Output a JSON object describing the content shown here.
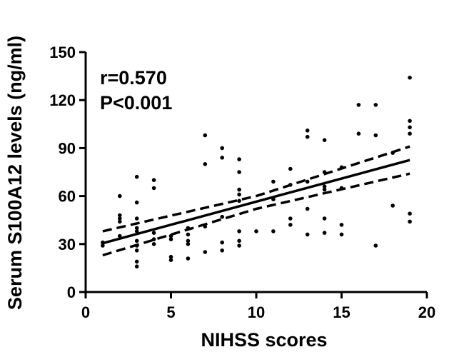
{
  "chart_data": {
    "type": "scatter",
    "title": "",
    "xlabel": "NIHSS scores",
    "ylabel": "Serum S100A12 levels (ng/ml)",
    "xlim": [
      0,
      20
    ],
    "ylim": [
      0,
      150
    ],
    "xticks": [
      0,
      5,
      10,
      15,
      20
    ],
    "yticks": [
      0,
      30,
      60,
      90,
      120,
      150
    ],
    "grid": false,
    "legend": "none",
    "annotations": [
      "r=0.570",
      "P<0.001"
    ],
    "color": "#000000",
    "points": [
      {
        "x": 1,
        "y": 29
      },
      {
        "x": 1,
        "y": 31
      },
      {
        "x": 2,
        "y": 60
      },
      {
        "x": 2,
        "y": 48
      },
      {
        "x": 2,
        "y": 46
      },
      {
        "x": 2,
        "y": 44
      },
      {
        "x": 2,
        "y": 35
      },
      {
        "x": 3,
        "y": 72
      },
      {
        "x": 3,
        "y": 56
      },
      {
        "x": 3,
        "y": 46
      },
      {
        "x": 3,
        "y": 40
      },
      {
        "x": 3,
        "y": 38
      },
      {
        "x": 3,
        "y": 32
      },
      {
        "x": 3,
        "y": 29
      },
      {
        "x": 3,
        "y": 26
      },
      {
        "x": 3,
        "y": 19
      },
      {
        "x": 3,
        "y": 16
      },
      {
        "x": 4,
        "y": 70
      },
      {
        "x": 4,
        "y": 65
      },
      {
        "x": 4,
        "y": 37
      },
      {
        "x": 4,
        "y": 33
      },
      {
        "x": 4,
        "y": 30
      },
      {
        "x": 5,
        "y": 35
      },
      {
        "x": 5,
        "y": 33
      },
      {
        "x": 5,
        "y": 22
      },
      {
        "x": 5,
        "y": 20
      },
      {
        "x": 6,
        "y": 40
      },
      {
        "x": 6,
        "y": 36
      },
      {
        "x": 6,
        "y": 32
      },
      {
        "x": 6,
        "y": 30
      },
      {
        "x": 6,
        "y": 21
      },
      {
        "x": 7,
        "y": 98
      },
      {
        "x": 7,
        "y": 80
      },
      {
        "x": 7,
        "y": 41
      },
      {
        "x": 7,
        "y": 25
      },
      {
        "x": 8,
        "y": 90
      },
      {
        "x": 8,
        "y": 84
      },
      {
        "x": 8,
        "y": 47
      },
      {
        "x": 8,
        "y": 31
      },
      {
        "x": 8,
        "y": 26
      },
      {
        "x": 9,
        "y": 83
      },
      {
        "x": 9,
        "y": 75
      },
      {
        "x": 9,
        "y": 64
      },
      {
        "x": 9,
        "y": 61
      },
      {
        "x": 9,
        "y": 57
      },
      {
        "x": 9,
        "y": 38
      },
      {
        "x": 9,
        "y": 32
      },
      {
        "x": 9,
        "y": 29
      },
      {
        "x": 10,
        "y": 38
      },
      {
        "x": 11,
        "y": 69
      },
      {
        "x": 11,
        "y": 58
      },
      {
        "x": 11,
        "y": 38
      },
      {
        "x": 12,
        "y": 77
      },
      {
        "x": 12,
        "y": 67
      },
      {
        "x": 12,
        "y": 46
      },
      {
        "x": 12,
        "y": 42
      },
      {
        "x": 13,
        "y": 101
      },
      {
        "x": 13,
        "y": 97
      },
      {
        "x": 13,
        "y": 69
      },
      {
        "x": 13,
        "y": 52
      },
      {
        "x": 13,
        "y": 36
      },
      {
        "x": 14,
        "y": 95
      },
      {
        "x": 14,
        "y": 75
      },
      {
        "x": 14,
        "y": 66
      },
      {
        "x": 14,
        "y": 64
      },
      {
        "x": 14,
        "y": 46
      },
      {
        "x": 14,
        "y": 37
      },
      {
        "x": 15,
        "y": 78
      },
      {
        "x": 15,
        "y": 65
      },
      {
        "x": 15,
        "y": 42
      },
      {
        "x": 15,
        "y": 36
      },
      {
        "x": 16,
        "y": 117
      },
      {
        "x": 16,
        "y": 99
      },
      {
        "x": 17,
        "y": 117
      },
      {
        "x": 17,
        "y": 98
      },
      {
        "x": 17,
        "y": 29
      },
      {
        "x": 18,
        "y": 87
      },
      {
        "x": 18,
        "y": 54
      },
      {
        "x": 19,
        "y": 134
      },
      {
        "x": 19,
        "y": 107
      },
      {
        "x": 19,
        "y": 103
      },
      {
        "x": 19,
        "y": 99
      },
      {
        "x": 19,
        "y": 49
      },
      {
        "x": 19,
        "y": 44
      }
    ],
    "regression_line": {
      "x": [
        1,
        19
      ],
      "y": [
        30.5,
        82.5
      ]
    },
    "confidence_band_upper": {
      "x": [
        1,
        10,
        19
      ],
      "y": [
        38,
        60,
        91
      ]
    },
    "confidence_band_lower": {
      "x": [
        1,
        10,
        19
      ],
      "y": [
        23,
        52,
        74
      ]
    }
  }
}
